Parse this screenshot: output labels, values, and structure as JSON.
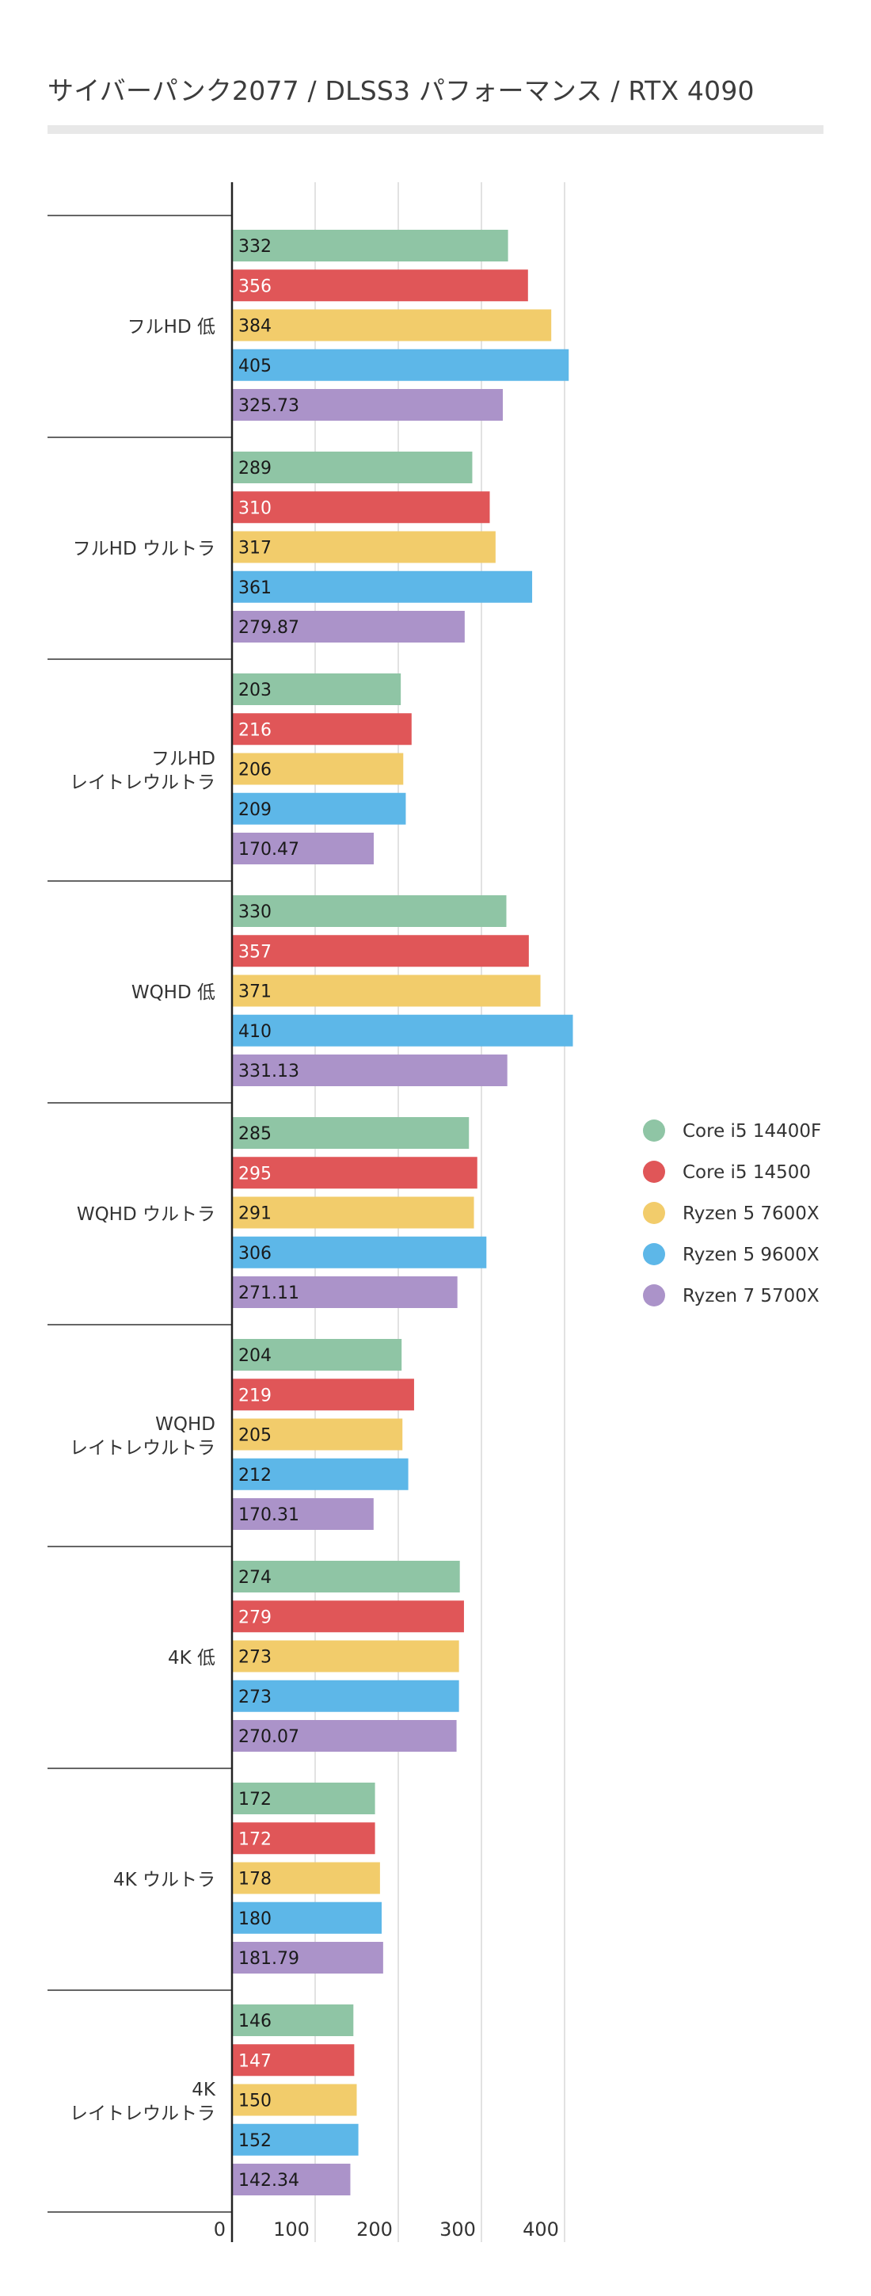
{
  "header": {
    "title": "サイバーパンク2077 / DLSS3 パフォーマンス / RTX 4090"
  },
  "chart_data": {
    "type": "bar",
    "orientation": "horizontal",
    "title": "サイバーパンク2077 / DLSS3 パフォーマンス / RTX 4090",
    "xlabel": "",
    "ylabel": "",
    "xlim": [
      0,
      440
    ],
    "ticks": [
      0,
      100,
      200,
      300,
      400
    ],
    "grid": true,
    "legend_position": "right",
    "categories": [
      [
        "フルHD 低"
      ],
      [
        "フルHD ウルトラ"
      ],
      [
        "フルHD",
        "レイトレウルトラ"
      ],
      [
        "WQHD 低"
      ],
      [
        "WQHD ウルトラ"
      ],
      [
        "WQHD",
        "レイトレウルトラ"
      ],
      [
        "4K 低"
      ],
      [
        "4K ウルトラ"
      ],
      [
        "4K",
        "レイトレウルトラ"
      ]
    ],
    "series": [
      {
        "name": "Core i5 14400F",
        "color": "#8fc5a5",
        "label_color": "#1a1a1a",
        "values": [
          332,
          289,
          203,
          330,
          285,
          204,
          274,
          172,
          146
        ],
        "labels": [
          "332",
          "289",
          "203",
          "330",
          "285",
          "204",
          "274",
          "172",
          "146"
        ]
      },
      {
        "name": "Core i5 14500",
        "color": "#e05658",
        "label_color": "#ffffff",
        "values": [
          356,
          310,
          216,
          357,
          295,
          219,
          279,
          172,
          147
        ],
        "labels": [
          "356",
          "310",
          "216",
          "357",
          "295",
          "219",
          "279",
          "172",
          "147"
        ]
      },
      {
        "name": "Ryzen 5 7600X",
        "color": "#f2cc6b",
        "label_color": "#1a1a1a",
        "values": [
          384,
          317,
          206,
          371,
          291,
          205,
          273,
          178,
          150
        ],
        "labels": [
          "384",
          "317",
          "206",
          "371",
          "291",
          "205",
          "273",
          "178",
          "150"
        ]
      },
      {
        "name": "Ryzen 5 9600X",
        "color": "#5db7e8",
        "label_color": "#1a1a1a",
        "values": [
          405,
          361,
          209,
          410,
          306,
          212,
          273,
          180,
          152
        ],
        "labels": [
          "405",
          "361",
          "209",
          "410",
          "306",
          "212",
          "273",
          "180",
          "152"
        ]
      },
      {
        "name": "Ryzen 7 5700X",
        "color": "#ab93c9",
        "label_color": "#1a1a1a",
        "values": [
          325.73,
          279.87,
          170.47,
          331.13,
          271.11,
          170.31,
          270.07,
          181.79,
          142.34
        ],
        "labels": [
          "325.73",
          "279.87",
          "170.47",
          "331.13",
          "271.11",
          "170.31",
          "270.07",
          "181.79",
          "142.34"
        ]
      }
    ]
  }
}
